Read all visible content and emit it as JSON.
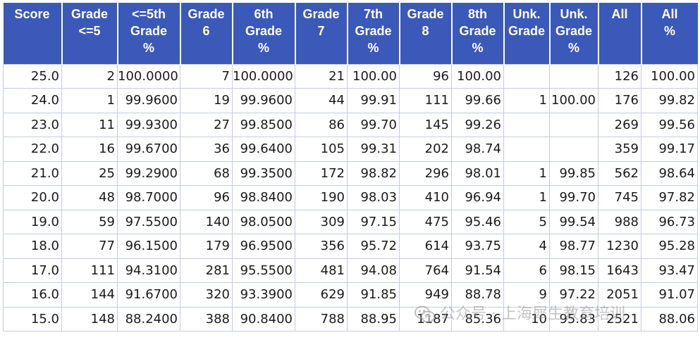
{
  "table": {
    "headers": [
      [
        "Score"
      ],
      [
        "Grade",
        "<=5"
      ],
      [
        "<=5th",
        "Grade",
        "%"
      ],
      [
        "Grade",
        "6"
      ],
      [
        "6th",
        "Grade",
        "%"
      ],
      [
        "Grade",
        "7"
      ],
      [
        "7th",
        "Grade",
        "%"
      ],
      [
        "Grade",
        "8"
      ],
      [
        "8th",
        "Grade",
        "%"
      ],
      [
        "Unk.",
        "Grade"
      ],
      [
        "Unk.",
        "Grade",
        "%"
      ],
      [
        "All"
      ],
      [
        "All",
        "%"
      ]
    ],
    "rows": [
      [
        "25.0",
        "2",
        "100.0000",
        "7",
        "100.0000",
        "21",
        "100.00",
        "96",
        "100.00",
        "",
        "",
        "126",
        "100.00"
      ],
      [
        "24.0",
        "1",
        "99.9600",
        "19",
        "99.9600",
        "44",
        "99.91",
        "111",
        "99.66",
        "1",
        "100.00",
        "176",
        "99.82"
      ],
      [
        "23.0",
        "11",
        "99.9300",
        "27",
        "99.8500",
        "86",
        "99.70",
        "145",
        "99.26",
        "",
        "",
        "269",
        "99.56"
      ],
      [
        "22.0",
        "16",
        "99.6700",
        "36",
        "99.6400",
        "105",
        "99.31",
        "202",
        "98.74",
        "",
        "",
        "359",
        "99.17"
      ],
      [
        "21.0",
        "25",
        "99.2900",
        "68",
        "99.3500",
        "172",
        "98.82",
        "296",
        "98.01",
        "1",
        "99.85",
        "562",
        "98.64"
      ],
      [
        "20.0",
        "48",
        "98.7000",
        "96",
        "98.8400",
        "190",
        "98.03",
        "410",
        "96.94",
        "1",
        "99.70",
        "745",
        "97.82"
      ],
      [
        "19.0",
        "59",
        "97.5500",
        "140",
        "98.0500",
        "309",
        "97.15",
        "475",
        "95.46",
        "5",
        "99.54",
        "988",
        "96.73"
      ],
      [
        "18.0",
        "77",
        "96.1500",
        "179",
        "96.9500",
        "356",
        "95.72",
        "614",
        "93.75",
        "4",
        "98.77",
        "1230",
        "95.28"
      ],
      [
        "17.0",
        "111",
        "94.3100",
        "281",
        "95.5500",
        "481",
        "94.08",
        "764",
        "91.54",
        "6",
        "98.15",
        "1643",
        "93.47"
      ],
      [
        "16.0",
        "144",
        "91.6700",
        "320",
        "93.3900",
        "629",
        "91.85",
        "949",
        "88.78",
        "9",
        "97.22",
        "2051",
        "91.07"
      ],
      [
        "15.0",
        "148",
        "88.2400",
        "388",
        "90.8400",
        "788",
        "88.95",
        "1187",
        "85.36",
        "10",
        "95.83",
        "2521",
        "88.06"
      ]
    ]
  },
  "watermark": {
    "icon": "wechat-icon",
    "text": "公众号 · 上海犀生教育培训"
  },
  "colors": {
    "header_bg": "#3b59b8",
    "header_text": "#ffffff",
    "grid": "#c6cbe0"
  }
}
